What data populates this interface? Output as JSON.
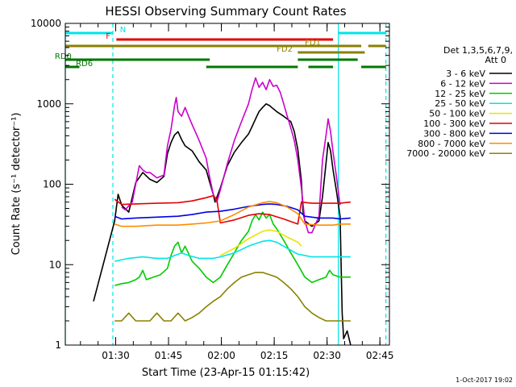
{
  "chart_data": {
    "type": "line",
    "title": "HESSI Observing Summary Count Rates",
    "xlabel": "Start Time (23-Apr-15 01:15:42)",
    "ylabel": "Count Rate (s⁻¹ detector⁻¹)",
    "yscale": "log",
    "ylim": [
      1,
      10000
    ],
    "xlim": [
      0,
      92
    ],
    "x_unit": "minutes after 01:15:42",
    "y_ticks": [
      {
        "v": 1,
        "label": "1"
      },
      {
        "v": 10,
        "label": "10"
      },
      {
        "v": 100,
        "label": "100"
      },
      {
        "v": 1000,
        "label": "1000"
      },
      {
        "v": 10000,
        "label": "10000"
      }
    ],
    "x_ticks": [
      {
        "t": 14.3,
        "label": "01:30"
      },
      {
        "t": 29.3,
        "label": "01:45"
      },
      {
        "t": 44.3,
        "label": "02:00"
      },
      {
        "t": 59.3,
        "label": "02:15"
      },
      {
        "t": 74.3,
        "label": "02:30"
      },
      {
        "t": 89.3,
        "label": "02:45"
      }
    ],
    "legend_header": [
      "Det 1,3,5,6,7,9,",
      "Att 0"
    ],
    "legend_position": "right",
    "grid": false,
    "series": [
      {
        "name": "3 - 6 keV",
        "color": "#000000",
        "points": [
          [
            8,
            3.5
          ],
          [
            14,
            35
          ],
          [
            15,
            75
          ],
          [
            16,
            55
          ],
          [
            18,
            45
          ],
          [
            20,
            105
          ],
          [
            22,
            140
          ],
          [
            24,
            115
          ],
          [
            26,
            105
          ],
          [
            28,
            125
          ],
          [
            29,
            240
          ],
          [
            30,
            330
          ],
          [
            31,
            410
          ],
          [
            32,
            450
          ],
          [
            33,
            360
          ],
          [
            34,
            300
          ],
          [
            36,
            260
          ],
          [
            38,
            190
          ],
          [
            40,
            150
          ],
          [
            41,
            105
          ],
          [
            42,
            75
          ],
          [
            42.5,
            60
          ],
          [
            44,
            90
          ],
          [
            46,
            170
          ],
          [
            48,
            250
          ],
          [
            50,
            330
          ],
          [
            52,
            420
          ],
          [
            53,
            520
          ],
          [
            54,
            650
          ],
          [
            55,
            800
          ],
          [
            56,
            900
          ],
          [
            57,
            1000
          ],
          [
            58,
            950
          ],
          [
            59,
            870
          ],
          [
            60,
            800
          ],
          [
            62,
            700
          ],
          [
            64,
            600
          ],
          [
            65,
            450
          ],
          [
            66,
            270
          ],
          [
            67,
            110
          ],
          [
            67.5,
            45
          ],
          [
            68,
            35
          ],
          [
            70,
            30
          ],
          [
            72,
            35
          ],
          [
            73,
            70
          ],
          [
            74,
            180
          ],
          [
            74.6,
            330
          ],
          [
            75.3,
            260
          ],
          [
            76,
            150
          ],
          [
            77,
            80
          ],
          [
            78,
            40
          ],
          [
            78.6,
            2.5
          ],
          [
            79,
            1.2
          ],
          [
            80,
            1.5
          ],
          [
            81,
            1
          ]
        ]
      },
      {
        "name": "6 - 12 keV",
        "color": "#cc00cc",
        "points": [
          [
            16,
            52
          ],
          [
            17,
            48
          ],
          [
            19,
            60
          ],
          [
            21,
            170
          ],
          [
            22,
            150
          ],
          [
            23,
            140
          ],
          [
            24,
            140
          ],
          [
            26,
            120
          ],
          [
            28,
            130
          ],
          [
            29,
            300
          ],
          [
            30,
            480
          ],
          [
            31,
            950
          ],
          [
            31.5,
            1200
          ],
          [
            32,
            800
          ],
          [
            33,
            700
          ],
          [
            34,
            900
          ],
          [
            35,
            700
          ],
          [
            36,
            550
          ],
          [
            38,
            350
          ],
          [
            40,
            210
          ],
          [
            41,
            120
          ],
          [
            42,
            75
          ],
          [
            43,
            60
          ],
          [
            44,
            85
          ],
          [
            46,
            180
          ],
          [
            48,
            350
          ],
          [
            50,
            600
          ],
          [
            52,
            1000
          ],
          [
            53,
            1500
          ],
          [
            54,
            2100
          ],
          [
            55,
            1600
          ],
          [
            56,
            1850
          ],
          [
            57,
            1500
          ],
          [
            58,
            2000
          ],
          [
            59,
            1650
          ],
          [
            60,
            1700
          ],
          [
            61,
            1400
          ],
          [
            62,
            1000
          ],
          [
            63,
            700
          ],
          [
            64,
            500
          ],
          [
            65,
            350
          ],
          [
            66,
            200
          ],
          [
            67,
            90
          ],
          [
            68,
            35
          ],
          [
            69,
            25
          ],
          [
            70,
            25
          ],
          [
            72,
            40
          ],
          [
            73,
            200
          ],
          [
            74,
            400
          ],
          [
            74.6,
            650
          ],
          [
            75.3,
            450
          ],
          [
            76,
            250
          ],
          [
            77,
            120
          ],
          [
            78,
            55
          ]
        ]
      },
      {
        "name": "12 - 25 keV",
        "color": "#00cc00",
        "points": [
          [
            14,
            5.5
          ],
          [
            16,
            5.8
          ],
          [
            18,
            6
          ],
          [
            20,
            6.5
          ],
          [
            21,
            7
          ],
          [
            22,
            8.5
          ],
          [
            23,
            6.5
          ],
          [
            25,
            7
          ],
          [
            27,
            7.5
          ],
          [
            29,
            9
          ],
          [
            30,
            13
          ],
          [
            31,
            17
          ],
          [
            32,
            19
          ],
          [
            33,
            14
          ],
          [
            34,
            17
          ],
          [
            36,
            11
          ],
          [
            38,
            9
          ],
          [
            40,
            7
          ],
          [
            42,
            6
          ],
          [
            44,
            7
          ],
          [
            46,
            10
          ],
          [
            48,
            14
          ],
          [
            50,
            20
          ],
          [
            52,
            26
          ],
          [
            53,
            35
          ],
          [
            54,
            42
          ],
          [
            55,
            36
          ],
          [
            56,
            45
          ],
          [
            57,
            38
          ],
          [
            58,
            42
          ],
          [
            59,
            32
          ],
          [
            60,
            28
          ],
          [
            62,
            20
          ],
          [
            64,
            14
          ],
          [
            66,
            10
          ],
          [
            68,
            7
          ],
          [
            70,
            6
          ],
          [
            72,
            6.5
          ],
          [
            74,
            7
          ],
          [
            75,
            8.5
          ],
          [
            76,
            7.5
          ],
          [
            78,
            7
          ],
          [
            81,
            7
          ]
        ]
      },
      {
        "name": "25 - 50 keV",
        "color": "#00e5e5",
        "points": [
          [
            14,
            11
          ],
          [
            18,
            12
          ],
          [
            22,
            12.5
          ],
          [
            26,
            12
          ],
          [
            29,
            12
          ],
          [
            31,
            13
          ],
          [
            33,
            14
          ],
          [
            35,
            13
          ],
          [
            38,
            12
          ],
          [
            42,
            12
          ],
          [
            44,
            12.5
          ],
          [
            48,
            14
          ],
          [
            52,
            17
          ],
          [
            56,
            19.5
          ],
          [
            58,
            20
          ],
          [
            60,
            19
          ],
          [
            63,
            16
          ],
          [
            66,
            13.5
          ],
          [
            70,
            12.5
          ],
          [
            74,
            12.5
          ],
          [
            78,
            12.5
          ],
          [
            81,
            12.5
          ]
        ]
      },
      {
        "name": "50 - 100 keV",
        "color": "#e5e500",
        "points": [
          [
            44,
            13
          ],
          [
            48,
            16
          ],
          [
            52,
            21
          ],
          [
            56,
            26
          ],
          [
            58,
            27
          ],
          [
            60,
            26
          ],
          [
            63,
            22
          ],
          [
            66,
            19
          ],
          [
            67,
            17
          ]
        ]
      },
      {
        "name": "100 - 300 keV",
        "color": "#e50000",
        "points": [
          [
            14,
            65
          ],
          [
            16,
            56
          ],
          [
            20,
            57
          ],
          [
            26,
            58
          ],
          [
            32,
            59
          ],
          [
            36,
            62
          ],
          [
            40,
            68
          ],
          [
            42,
            72
          ],
          [
            43,
            65
          ],
          [
            44,
            33
          ],
          [
            48,
            36
          ],
          [
            52,
            41
          ],
          [
            55,
            43
          ],
          [
            58,
            42
          ],
          [
            62,
            37
          ],
          [
            66,
            32
          ],
          [
            67,
            60
          ],
          [
            70,
            58
          ],
          [
            74,
            58
          ],
          [
            78,
            58
          ],
          [
            81,
            60
          ]
        ]
      },
      {
        "name": "300 - 800 keV",
        "color": "#0000e5",
        "points": [
          [
            14,
            40
          ],
          [
            16,
            37
          ],
          [
            20,
            38
          ],
          [
            26,
            39
          ],
          [
            32,
            40
          ],
          [
            36,
            42
          ],
          [
            40,
            45
          ],
          [
            44,
            46
          ],
          [
            48,
            49
          ],
          [
            52,
            53
          ],
          [
            56,
            56
          ],
          [
            58,
            57
          ],
          [
            60,
            56
          ],
          [
            63,
            53
          ],
          [
            66,
            48
          ],
          [
            68,
            40
          ],
          [
            72,
            38
          ],
          [
            76,
            38
          ],
          [
            78,
            37
          ],
          [
            81,
            38
          ]
        ]
      },
      {
        "name": "800 - 7000 keV",
        "color": "#ff8c00",
        "points": [
          [
            14,
            32
          ],
          [
            16,
            30
          ],
          [
            20,
            30
          ],
          [
            26,
            31
          ],
          [
            32,
            31
          ],
          [
            36,
            32
          ],
          [
            40,
            33
          ],
          [
            44,
            35
          ],
          [
            48,
            42
          ],
          [
            52,
            52
          ],
          [
            56,
            59
          ],
          [
            58,
            61
          ],
          [
            60,
            59
          ],
          [
            63,
            52
          ],
          [
            66,
            43
          ],
          [
            68,
            32
          ],
          [
            72,
            31
          ],
          [
            76,
            31
          ],
          [
            78,
            32
          ],
          [
            81,
            32
          ]
        ]
      },
      {
        "name": "7000 - 20000 keV",
        "color": "#8b8000",
        "points": [
          [
            14,
            2
          ],
          [
            16,
            2
          ],
          [
            18,
            2.5
          ],
          [
            20,
            2
          ],
          [
            22,
            2
          ],
          [
            24,
            2
          ],
          [
            26,
            2.5
          ],
          [
            28,
            2
          ],
          [
            30,
            2
          ],
          [
            32,
            2.5
          ],
          [
            34,
            2
          ],
          [
            36,
            2.2
          ],
          [
            38,
            2.5
          ],
          [
            40,
            3
          ],
          [
            42,
            3.5
          ],
          [
            44,
            4
          ],
          [
            46,
            5
          ],
          [
            48,
            6
          ],
          [
            50,
            7
          ],
          [
            52,
            7.5
          ],
          [
            54,
            8
          ],
          [
            56,
            8
          ],
          [
            58,
            7.5
          ],
          [
            60,
            7
          ],
          [
            62,
            6
          ],
          [
            64,
            5
          ],
          [
            66,
            4
          ],
          [
            68,
            3
          ],
          [
            70,
            2.5
          ],
          [
            72,
            2.2
          ],
          [
            74,
            2
          ],
          [
            76,
            2
          ],
          [
            78,
            2
          ],
          [
            80,
            2
          ],
          [
            81,
            2
          ]
        ]
      }
    ],
    "annotation_rows": [
      {
        "label": "N",
        "color": "#00e5e5",
        "row": 1,
        "label_at": 15.5,
        "segments": [
          [
            0,
            13.5
          ],
          [
            77.5,
            91
          ]
        ]
      },
      {
        "label": "F",
        "color": "#e50000",
        "row": 2,
        "label_at": 11.5,
        "segments": [
          [
            14.5,
            76
          ]
        ]
      },
      {
        "label": "FD1",
        "color": "#8b8000",
        "row": 3,
        "label_at": 68,
        "segments": [
          [
            0,
            84
          ],
          [
            86,
            91
          ]
        ]
      },
      {
        "label": "FD2",
        "color": "#8b8000",
        "row": 4,
        "label_at": 60,
        "segments": [
          [
            66,
            85
          ]
        ]
      },
      {
        "label": "RD0",
        "color": "#007700",
        "row": 5,
        "label_at": -3,
        "segments": [
          [
            0,
            41
          ],
          [
            66,
            83
          ]
        ]
      },
      {
        "label": "RD6",
        "color": "#007700",
        "row": 6,
        "label_at": 3,
        "segments": [
          [
            0,
            4
          ],
          [
            40,
            66
          ],
          [
            69,
            76
          ],
          [
            84,
            91
          ]
        ]
      }
    ],
    "vertical_markers": [
      {
        "t": 0,
        "color": "#00e5e5",
        "style": "solid"
      },
      {
        "t": 13.5,
        "color": "#00e5e5",
        "style": "dashed"
      },
      {
        "t": 77.5,
        "color": "#00e5e5",
        "style": "solid"
      },
      {
        "t": 91,
        "color": "#00e5e5",
        "style": "dashed"
      }
    ],
    "footer": "1-Oct-2017 19:02"
  }
}
